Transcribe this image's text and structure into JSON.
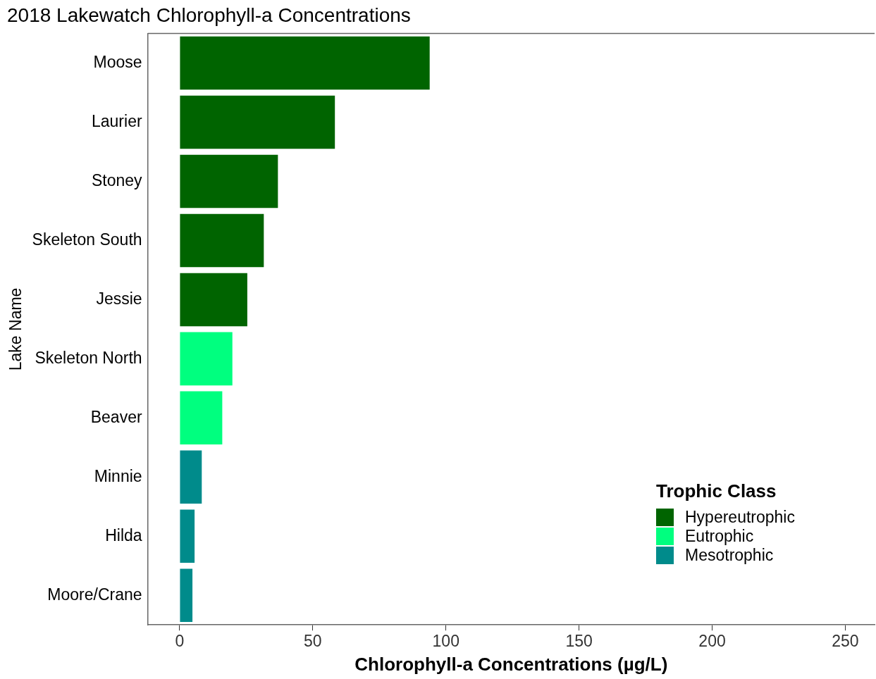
{
  "chart_data": {
    "type": "bar",
    "orientation": "horizontal",
    "stacked": true,
    "title": "2018 Lakewatch Chlorophyll-a Concentrations",
    "xlabel": "Chlorophyll-a Concentrations (µg/L)",
    "ylabel": "Lake Name",
    "legend_title": "Trophic Class",
    "legend": "bottom right",
    "grid": false,
    "categories": [
      "Moose",
      "Laurier",
      "Stoney",
      "Skeleton South",
      "Jessie",
      "Skeleton North",
      "Beaver",
      "Minnie",
      "Hilda",
      "Moore/Crane"
    ],
    "series": [
      {
        "name": "Hypereutrophic",
        "color": "#006400",
        "values": [
          93.9,
          58.3,
          36.9,
          31.6,
          25.4,
          null,
          null,
          null,
          null,
          null
        ]
      },
      {
        "name": "Eutrophic",
        "color": "#00ff7f",
        "values": [
          null,
          null,
          null,
          null,
          null,
          19.8,
          16.0,
          null,
          null,
          null
        ]
      },
      {
        "name": "Mesotrophic",
        "color": "#008b8b",
        "values": [
          null,
          null,
          null,
          null,
          null,
          null,
          null,
          8.3,
          5.6,
          4.8
        ]
      }
    ],
    "xlim": [
      -12,
      261
    ],
    "xticks": [
      0,
      50,
      100,
      150,
      200,
      250
    ]
  }
}
